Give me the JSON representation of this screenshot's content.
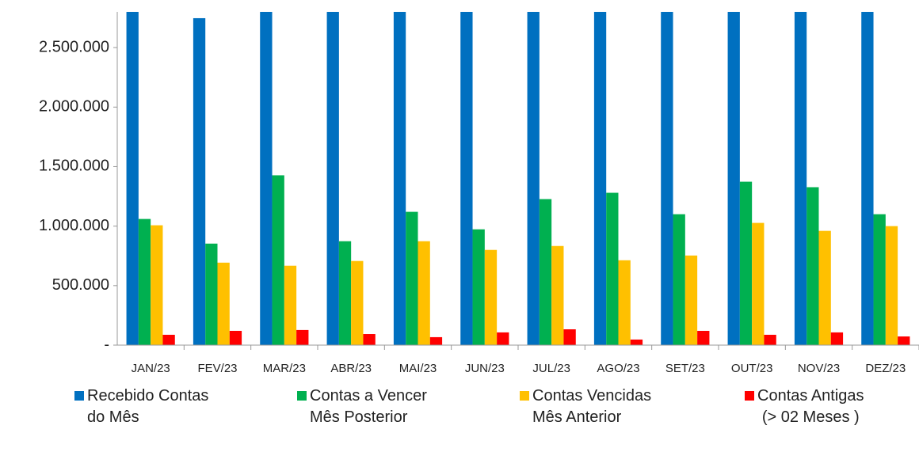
{
  "chart_data": {
    "type": "bar",
    "categories": [
      "JAN/23",
      "FEV/23",
      "MAR/23",
      "ABR/23",
      "MAI/23",
      "JUN/23",
      "JUL/23",
      "AGO/23",
      "SET/23",
      "OUT/23",
      "NOV/23",
      "DEZ/23"
    ],
    "series": [
      {
        "name": "Recebido Contas\ndo Mês",
        "color": "#0070c0",
        "values": [
          2800000,
          2747000,
          2800000,
          2800000,
          2800000,
          2800000,
          2800000,
          2800000,
          2800000,
          2800000,
          2800000,
          2800000
        ]
      },
      {
        "name": "Contas a Vencer\nMês Posterior",
        "color": "#00b050",
        "values": [
          1060000,
          853000,
          1427000,
          873000,
          1120000,
          973000,
          1227000,
          1280000,
          1100000,
          1373000,
          1327000,
          1100000
        ]
      },
      {
        "name": "Contas Vencidas\nMês Anterior",
        "color": "#ffc000",
        "values": [
          1007000,
          693000,
          667000,
          707000,
          873000,
          800000,
          833000,
          713000,
          753000,
          1027000,
          960000,
          1000000
        ]
      },
      {
        "name": "Contas Antigas\n(> 02 Meses )",
        "color": "#ff0000",
        "values": [
          87000,
          120000,
          127000,
          93000,
          67000,
          107000,
          133000,
          47000,
          120000,
          87000,
          107000,
          73000
        ]
      }
    ],
    "ylim": [
      0,
      2800000
    ],
    "yticks": [
      {
        "value": 0,
        "label": "-"
      },
      {
        "value": 500000,
        "label": "500.000"
      },
      {
        "value": 1000000,
        "label": "1.000.000"
      },
      {
        "value": 1500000,
        "label": "1.500.000"
      },
      {
        "value": 2000000,
        "label": "2.000.000"
      },
      {
        "value": 2500000,
        "label": "2.500.000"
      }
    ],
    "grid": false
  }
}
